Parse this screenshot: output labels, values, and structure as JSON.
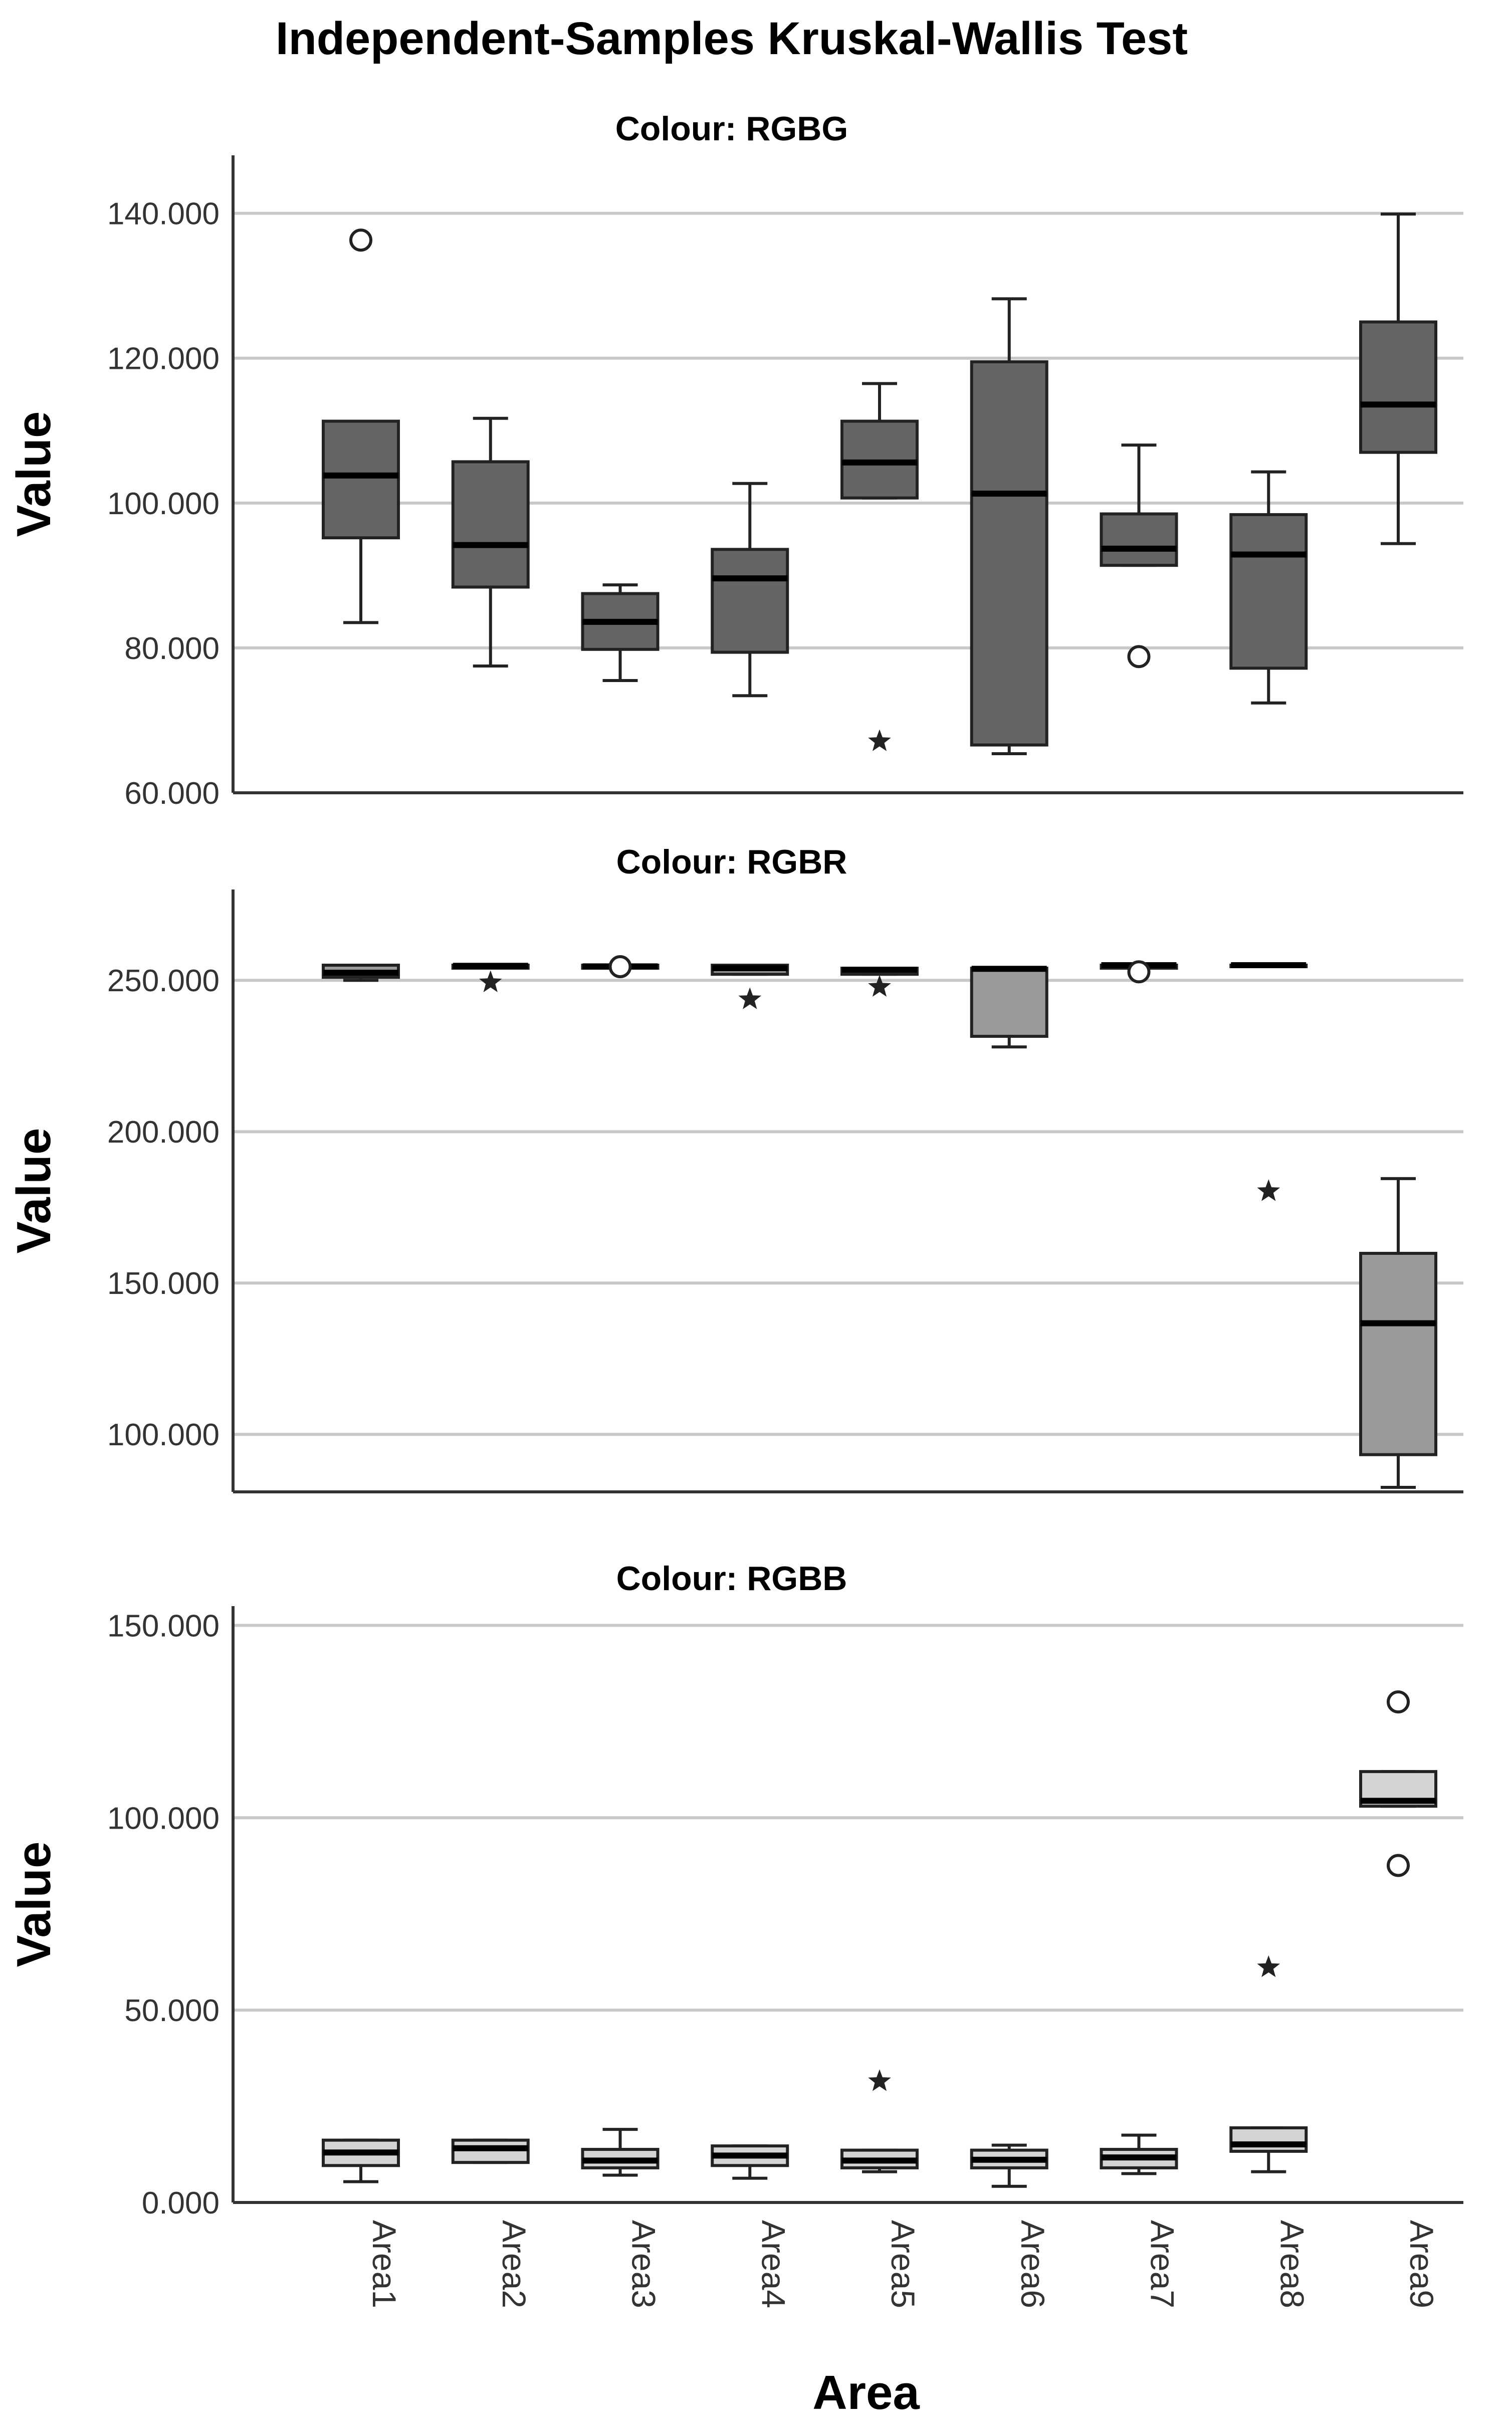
{
  "chart_data": {
    "type": "boxplot",
    "title": "Independent-Samples Kruskal-Wallis Test",
    "xlabel": "Area",
    "ylabel": "Value",
    "categories": [
      "Area1",
      "Area2",
      "Area3",
      "Area4",
      "Area5",
      "Area6",
      "Area7",
      "Area8",
      "Area9"
    ],
    "panels": [
      {
        "title": "Colour: RGBG",
        "ylim": [
          60,
          148
        ],
        "ticks": [
          60,
          80,
          100,
          120,
          140
        ],
        "tick_labels": [
          "60.000",
          "80.000",
          "100.000",
          "120.000",
          "140.000"
        ],
        "box_color": "#656565",
        "boxes": [
          {
            "category": "Area1",
            "whisker_low": 83.5,
            "q1": 95.2,
            "median": 103.8,
            "q3": 111.3,
            "whisker_high": 111.3
          },
          {
            "category": "Area2",
            "whisker_low": 77.5,
            "q1": 88.4,
            "median": 94.2,
            "q3": 105.7,
            "whisker_high": 111.7
          },
          {
            "category": "Area3",
            "whisker_low": 75.5,
            "q1": 79.8,
            "median": 83.6,
            "q3": 87.5,
            "whisker_high": 88.7
          },
          {
            "category": "Area4",
            "whisker_low": 73.4,
            "q1": 79.4,
            "median": 89.6,
            "q3": 93.6,
            "whisker_high": 102.7
          },
          {
            "category": "Area5",
            "whisker_low": 100.7,
            "q1": 100.7,
            "median": 105.6,
            "q3": 111.3,
            "whisker_high": 116.5
          },
          {
            "category": "Area6",
            "whisker_low": 65.4,
            "q1": 66.6,
            "median": 101.3,
            "q3": 119.5,
            "whisker_high": 128.2
          },
          {
            "category": "Area7",
            "whisker_low": 91.4,
            "q1": 91.4,
            "median": 93.7,
            "q3": 98.5,
            "whisker_high": 108.0
          },
          {
            "category": "Area8",
            "whisker_low": 72.4,
            "q1": 77.2,
            "median": 92.9,
            "q3": 98.4,
            "whisker_high": 104.3
          },
          {
            "category": "Area9",
            "whisker_low": 94.4,
            "q1": 107.0,
            "median": 113.6,
            "q3": 125.0,
            "whisker_high": 139.9
          }
        ],
        "outliers": [
          {
            "category": "Area1",
            "value": 136.3,
            "marker": "circle"
          },
          {
            "category": "Area5",
            "value": 67.1,
            "marker": "star"
          },
          {
            "category": "Area7",
            "value": 78.8,
            "marker": "circle"
          }
        ]
      },
      {
        "title": "Colour: RGBR",
        "ylim": [
          81,
          280
        ],
        "ticks": [
          100,
          150,
          200,
          250
        ],
        "tick_labels": [
          "100.000",
          "150.000",
          "200.000",
          "250.000"
        ],
        "box_color": "#9a9a9a",
        "boxes": [
          {
            "category": "Area1",
            "whisker_low": 250.0,
            "q1": 251.0,
            "median": 252.5,
            "q3": 255.0,
            "whisker_high": 255.0
          },
          {
            "category": "Area2",
            "whisker_low": 254.0,
            "q1": 254.0,
            "median": 254.8,
            "q3": 255.0,
            "whisker_high": 255.0
          },
          {
            "category": "Area3",
            "whisker_low": 254.0,
            "q1": 254.0,
            "median": 254.6,
            "q3": 255.0,
            "whisker_high": 255.0
          },
          {
            "category": "Area4",
            "whisker_low": 252.0,
            "q1": 252.0,
            "median": 254.0,
            "q3": 255.0,
            "whisker_high": 255.0
          },
          {
            "category": "Area5",
            "whisker_low": 252.0,
            "q1": 252.0,
            "median": 253.5,
            "q3": 254.0,
            "whisker_high": 254.0
          },
          {
            "category": "Area6",
            "whisker_low": 228.0,
            "q1": 231.5,
            "median": 253.8,
            "q3": 254.0,
            "whisker_high": 254.0
          },
          {
            "category": "Area7",
            "whisker_low": 254.0,
            "q1": 254.0,
            "median": 255.0,
            "q3": 255.0,
            "whisker_high": 255.0
          },
          {
            "category": "Area8",
            "whisker_low": 254.5,
            "q1": 254.5,
            "median": 255.0,
            "q3": 255.0,
            "whisker_high": 255.0
          },
          {
            "category": "Area9",
            "whisker_low": 82.5,
            "q1": 93.3,
            "median": 136.7,
            "q3": 159.8,
            "whisker_high": 184.5
          }
        ],
        "outliers": [
          {
            "category": "Area2",
            "value": 249.3,
            "marker": "star"
          },
          {
            "category": "Area3",
            "value": 254.5,
            "marker": "circle"
          },
          {
            "category": "Area4",
            "value": 243.7,
            "marker": "star"
          },
          {
            "category": "Area5",
            "value": 247.8,
            "marker": "star"
          },
          {
            "category": "Area7",
            "value": 252.8,
            "marker": "circle"
          },
          {
            "category": "Area8",
            "value": 180.3,
            "marker": "star"
          }
        ]
      },
      {
        "title": "Colour: RGBB",
        "ylim": [
          0,
          155
        ],
        "ticks": [
          0,
          50,
          100,
          150
        ],
        "tick_labels": [
          "0.000",
          "50.000",
          "100.000",
          "150.000"
        ],
        "box_color": "#d4d4d4",
        "boxes": [
          {
            "category": "Area1",
            "whisker_low": 5.4,
            "q1": 9.6,
            "median": 13.0,
            "q3": 16.2,
            "whisker_high": 16.2
          },
          {
            "category": "Area2",
            "whisker_low": 10.4,
            "q1": 10.4,
            "median": 14.1,
            "q3": 16.2,
            "whisker_high": 16.2
          },
          {
            "category": "Area3",
            "whisker_low": 7.1,
            "q1": 9.0,
            "median": 10.9,
            "q3": 13.8,
            "whisker_high": 19.0
          },
          {
            "category": "Area4",
            "whisker_low": 6.3,
            "q1": 9.6,
            "median": 12.2,
            "q3": 14.7,
            "whisker_high": 14.7
          },
          {
            "category": "Area5",
            "whisker_low": 8.0,
            "q1": 9.0,
            "median": 10.9,
            "q3": 13.6,
            "whisker_high": 13.6
          },
          {
            "category": "Area6",
            "whisker_low": 4.2,
            "q1": 9.0,
            "median": 11.1,
            "q3": 13.6,
            "whisker_high": 14.9
          },
          {
            "category": "Area7",
            "whisker_low": 7.5,
            "q1": 9.0,
            "median": 11.7,
            "q3": 13.8,
            "whisker_high": 17.5
          },
          {
            "category": "Area8",
            "whisker_low": 8.0,
            "q1": 13.3,
            "median": 15.1,
            "q3": 19.4,
            "whisker_high": 19.4
          },
          {
            "category": "Area9",
            "whisker_low": 103.0,
            "q1": 103.0,
            "median": 104.4,
            "q3": 112.0,
            "whisker_high": 112.0
          }
        ],
        "outliers": [
          {
            "category": "Area5",
            "value": 31.5,
            "marker": "star"
          },
          {
            "category": "Area8",
            "value": 61.1,
            "marker": "star"
          },
          {
            "category": "Area9",
            "value": 130.1,
            "marker": "circle"
          },
          {
            "category": "Area9",
            "value": 87.6,
            "marker": "circle"
          }
        ]
      }
    ]
  }
}
